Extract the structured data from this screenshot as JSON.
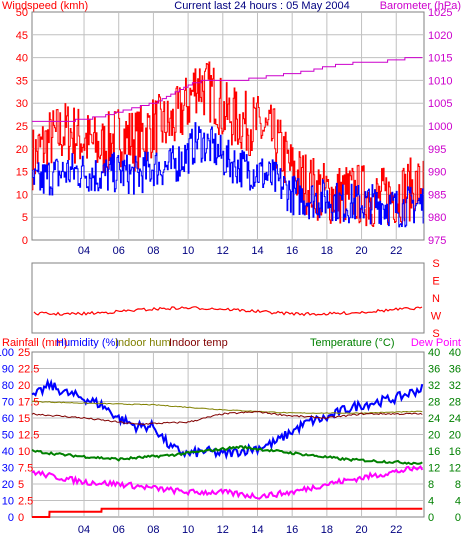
{
  "header": {
    "title": "Current last 24 hours : 05 May 2004",
    "left_label": "Windspeed (kmh)",
    "right_label": "Barometer (hPa)"
  },
  "colors": {
    "wind": "#ff0000",
    "wind_avg": "#0000ff",
    "baro": "#cc00cc",
    "grid": "#c0c0c0",
    "humidity": "#0000ff",
    "indoor_hum": "#808000",
    "indoor_temp": "#800000",
    "temperature": "#008000",
    "dew": "#ff00ff",
    "rain": "#ff0000",
    "dir": "#ff0000"
  },
  "bottom_header": {
    "rain_label": "Rainfall (mm)",
    "humidity_label": "Humidity (%)",
    "indoor_hum_label": "Indoor hum",
    "indoor_temp_label": "Indoor temp",
    "temperature_label": "Temperature (°C)",
    "dew_label": "Dew Point"
  },
  "chart_data": [
    {
      "type": "line",
      "panel": "wind-barometer",
      "x_tick_labels": [
        "04",
        "06",
        "08",
        "10",
        "12",
        "14",
        "16",
        "18",
        "20",
        "22"
      ],
      "x_hours": [
        4,
        6,
        8,
        10,
        12,
        14,
        16,
        18,
        20,
        22
      ],
      "y_left": {
        "label": "Windspeed (kmh)",
        "ticks": [
          0,
          5,
          10,
          15,
          20,
          25,
          30,
          35,
          40,
          45,
          50
        ],
        "range": [
          0,
          50
        ]
      },
      "y_right": {
        "label": "Barometer (hPa)",
        "ticks": [
          975,
          980,
          985,
          990,
          995,
          1000,
          1005,
          1010,
          1015,
          1020,
          1025
        ],
        "range": [
          975,
          1025
        ]
      },
      "series": [
        {
          "name": "Windspeed (kmh)",
          "axis": "left",
          "x": [
            1,
            2,
            3,
            4,
            5,
            6,
            7,
            8,
            9,
            10,
            10.5,
            11,
            11.5,
            12,
            13,
            14,
            15,
            16,
            17,
            18,
            19,
            20,
            21,
            22,
            23.5
          ],
          "values": [
            18,
            22,
            24,
            22,
            20,
            23,
            22,
            25,
            25,
            30,
            35,
            33,
            32,
            28,
            26,
            25,
            22,
            15,
            12,
            10,
            10,
            10,
            9,
            10,
            12
          ]
        },
        {
          "name": "Wind average",
          "axis": "left",
          "x": [
            1,
            2,
            3,
            4,
            5,
            6,
            7,
            8,
            9,
            10,
            10.5,
            11,
            11.5,
            12,
            13,
            14,
            15,
            16,
            17,
            18,
            19,
            20,
            21,
            22,
            23.5
          ],
          "values": [
            12,
            14,
            15,
            15,
            14,
            15,
            14,
            16,
            16,
            19,
            22,
            21,
            20,
            18,
            16,
            15,
            13,
            10,
            9,
            9,
            8,
            8,
            8,
            7,
            8
          ]
        },
        {
          "name": "Barometer (hPa)",
          "axis": "right",
          "x": [
            1,
            3,
            4,
            5,
            6,
            7,
            8,
            9,
            10,
            11,
            12,
            13,
            14,
            15,
            16,
            17,
            18,
            19,
            20,
            21,
            22,
            23,
            23.5
          ],
          "values": [
            1001,
            1001,
            1001.5,
            1002,
            1003,
            1004,
            1005,
            1007,
            1009,
            1010,
            1010,
            1010,
            1010.5,
            1011,
            1011.5,
            1012,
            1013,
            1013.5,
            1014,
            1014,
            1014.5,
            1015,
            1015
          ]
        }
      ]
    },
    {
      "type": "line",
      "panel": "wind-direction",
      "y_labels": [
        "S",
        "E",
        "N",
        "W",
        "S"
      ],
      "series": [
        {
          "name": "Wind direction",
          "x": [
            1,
            4,
            8,
            12,
            16,
            20,
            23.5
          ],
          "values": [
            "N",
            "N",
            "N",
            "N",
            "N",
            "N",
            "N"
          ]
        }
      ]
    },
    {
      "type": "line",
      "panel": "humidity-temperature-rain",
      "x_tick_labels": [
        "04",
        "06",
        "08",
        "10",
        "12",
        "14",
        "16",
        "18",
        "20",
        "22"
      ],
      "x_hours": [
        4,
        6,
        8,
        10,
        12,
        14,
        16,
        18,
        20,
        22
      ],
      "y_humidity": {
        "label": "Humidity (%)",
        "ticks": [
          0,
          10,
          20,
          30,
          40,
          50,
          60,
          70,
          80,
          90,
          100
        ],
        "range": [
          0,
          100
        ]
      },
      "y_rain": {
        "label": "Rainfall (mm)",
        "ticks": [
          0,
          2.5,
          5,
          7.5,
          10,
          12.5,
          15,
          17.5,
          20,
          22.5,
          25
        ],
        "tick_labels": [
          "0",
          "2.5",
          "5",
          "7.5",
          "10",
          "12.5",
          "15",
          "17.5",
          "20",
          "22.5",
          "25"
        ],
        "range": [
          0,
          25
        ]
      },
      "y_temp": {
        "label": "Temperature (°C)",
        "ticks": [
          0,
          4,
          8,
          12,
          16,
          20,
          24,
          28,
          32,
          36,
          40
        ],
        "range": [
          0,
          40
        ]
      },
      "series": [
        {
          "name": "Humidity (%)",
          "axis": "humidity",
          "x": [
            1,
            2,
            3,
            4,
            5,
            6,
            7,
            8,
            9,
            10,
            11,
            12,
            13,
            14,
            15,
            16,
            17,
            18,
            19,
            20,
            21,
            22,
            23.5
          ],
          "values": [
            72,
            80,
            75,
            72,
            68,
            60,
            55,
            55,
            42,
            38,
            40,
            38,
            40,
            42,
            45,
            52,
            58,
            60,
            65,
            68,
            70,
            72,
            78
          ]
        },
        {
          "name": "Indoor hum",
          "axis": "humidity",
          "x": [
            1,
            4,
            8,
            12,
            16,
            20,
            23.5
          ],
          "values": [
            70,
            69,
            68,
            65,
            63,
            63,
            64
          ]
        },
        {
          "name": "Indoor temp",
          "axis": "temp",
          "x": [
            1,
            4,
            7,
            10,
            12,
            14,
            16,
            18,
            20,
            23.5
          ],
          "values": [
            25,
            24,
            22.5,
            23,
            25,
            25.5,
            24.5,
            24,
            25,
            25
          ]
        },
        {
          "name": "Temperature (°C)",
          "axis": "temp",
          "x": [
            1,
            3,
            6,
            9,
            11,
            13,
            15,
            17,
            19,
            21,
            23.5
          ],
          "values": [
            16,
            15,
            14,
            15,
            16,
            17,
            16,
            15,
            14,
            13.5,
            13
          ]
        },
        {
          "name": "Dew Point",
          "axis": "temp",
          "x": [
            1,
            2,
            4,
            6,
            8,
            10,
            12,
            14,
            16,
            18,
            20,
            22,
            23.5
          ],
          "values": [
            11,
            10,
            8.5,
            8,
            7,
            6,
            6,
            5,
            6,
            8,
            9.5,
            11,
            12
          ]
        },
        {
          "name": "Rainfall (mm)",
          "axis": "rain",
          "x": [
            1,
            2,
            2.01,
            5,
            5.01,
            23.5
          ],
          "values": [
            0,
            0,
            0.8,
            0.8,
            1.25,
            1.25
          ]
        }
      ]
    }
  ]
}
